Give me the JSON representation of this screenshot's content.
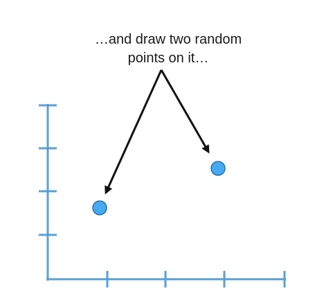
{
  "annotation": {
    "line1": "…and draw two random",
    "line2": "points on it…"
  },
  "axes": {
    "color": "#5a9fd4",
    "x_ticks": 4,
    "y_ticks": 4
  },
  "points": [
    {
      "color": "#45aaf2"
    },
    {
      "color": "#45aaf2"
    }
  ],
  "arrow_color": "#111111"
}
